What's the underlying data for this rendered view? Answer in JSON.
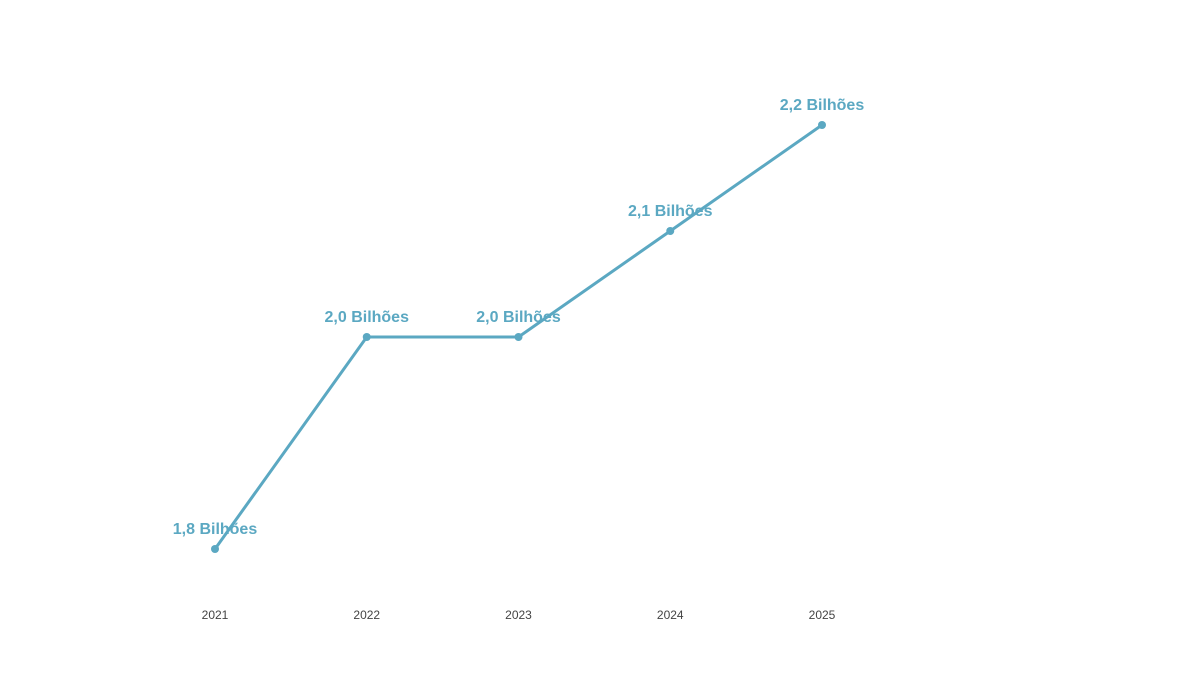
{
  "chart_data": {
    "type": "line",
    "categories": [
      "2021",
      "2022",
      "2023",
      "2024",
      "2025"
    ],
    "series": [
      {
        "color": "#5ba8c2",
        "values": [
          1.8,
          2.0,
          2.0,
          2.1,
          2.2
        ],
        "value_labels": [
          "1,8 Bilhões",
          "2,0 Bilhões",
          "2,0 Bilhões",
          "2,1 Bilhões",
          "2,2 Bilhões"
        ]
      }
    ]
  }
}
